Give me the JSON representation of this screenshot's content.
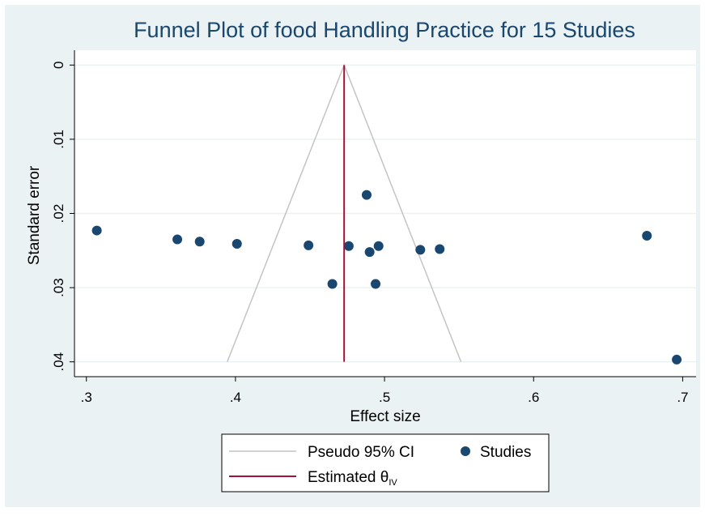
{
  "chart_data": {
    "type": "funnel",
    "title": "Funnel Plot of food Handling Practice for 15 Studies",
    "x_label": "Effect size",
    "y_label": "Standard error",
    "xlim": [
      0.292,
      0.709
    ],
    "ylim": [
      -0.002,
      0.042
    ],
    "y_inverted": true,
    "grid": true,
    "xticks": [
      {
        "value": 0.3,
        "label": ".3"
      },
      {
        "value": 0.4,
        "label": ".4"
      },
      {
        "value": 0.5,
        "label": ".5"
      },
      {
        "value": 0.6,
        "label": ".6"
      },
      {
        "value": 0.7,
        "label": ".7"
      }
    ],
    "yticks": [
      0,
      {
        "value": 0.01,
        "label": ".01"
      },
      {
        "value": 0.02,
        "label": ".02"
      },
      {
        "value": 0.03,
        "label": ".03"
      },
      {
        "value": 0.04,
        "label": ".04"
      }
    ],
    "legend_position": "bottom",
    "series": [
      {
        "name": "Pseudo 95% CI",
        "type": "line",
        "color": "#c4c4c4",
        "x": [
          0.3945,
          0.4729,
          0.5513
        ],
        "values": [
          0.04,
          0,
          0.04
        ]
      },
      {
        "name": "Studies",
        "type": "scatter",
        "color": "#1a476f",
        "x": [
          0.307,
          0.361,
          0.376,
          0.401,
          0.449,
          0.465,
          0.476,
          0.488,
          0.49,
          0.494,
          0.496,
          0.524,
          0.537,
          0.676,
          0.696
        ],
        "values": [
          0.0223,
          0.0235,
          0.0238,
          0.0241,
          0.0243,
          0.0295,
          0.0244,
          0.0175,
          0.0252,
          0.0295,
          0.0244,
          0.0249,
          0.0248,
          0.023,
          0.0397
        ]
      },
      {
        "name": "Estimated θ",
        "subscript": "IV",
        "type": "line",
        "color": "#a3123a",
        "x": [
          0.4729,
          0.4729
        ],
        "values": [
          0,
          0.04
        ]
      }
    ]
  }
}
